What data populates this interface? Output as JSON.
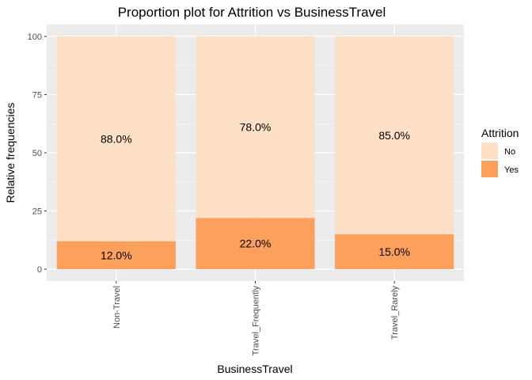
{
  "chart_data": {
    "type": "bar",
    "stacked": true,
    "title": "Proportion plot for Attrition vs BusinessTravel",
    "xlabel": "BusinessTravel",
    "ylabel": "Relative frequencies",
    "categories": [
      "Non-Travel",
      "Travel_Frequently",
      "Travel_Rarely"
    ],
    "series": [
      {
        "name": "Yes",
        "values": [
          12.0,
          22.0,
          15.0
        ],
        "labels": [
          "12.0%",
          "22.0%",
          "15.0%"
        ],
        "color": "#fca05c"
      },
      {
        "name": "No",
        "values": [
          88.0,
          78.0,
          85.0
        ],
        "labels": [
          "88.0%",
          "78.0%",
          "85.0%"
        ],
        "color": "#fde0c5"
      }
    ],
    "ylim": [
      0,
      100
    ],
    "yticks": [
      0,
      25,
      50,
      75,
      100
    ],
    "legend": {
      "title": "Attrition",
      "entries": [
        "No",
        "Yes"
      ],
      "position": "right"
    },
    "grid": true,
    "panel_background": "#ebebeb",
    "grid_color": "#ffffff"
  }
}
